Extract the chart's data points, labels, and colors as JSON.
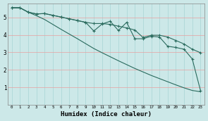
{
  "xlabel": "Humidex (Indice chaleur)",
  "bg_color": "#cce8e8",
  "grid_color_h": "#e8a0a0",
  "grid_color_v": "#a8d4d4",
  "line_color": "#2a6b5e",
  "x_values": [
    0,
    1,
    2,
    3,
    4,
    5,
    6,
    7,
    8,
    9,
    10,
    11,
    12,
    13,
    14,
    15,
    16,
    17,
    18,
    19,
    20,
    21,
    22,
    23
  ],
  "line1_y": [
    5.55,
    5.55,
    5.3,
    5.2,
    5.22,
    5.12,
    5.02,
    4.92,
    4.82,
    4.72,
    4.65,
    4.65,
    4.6,
    4.5,
    4.4,
    4.28,
    3.85,
    3.98,
    3.98,
    3.88,
    3.68,
    3.48,
    3.18,
    2.98
  ],
  "line2_y": [
    5.55,
    5.55,
    5.3,
    5.2,
    5.22,
    5.12,
    5.02,
    4.92,
    4.82,
    4.72,
    4.22,
    4.62,
    4.78,
    4.25,
    4.72,
    3.78,
    3.78,
    3.92,
    3.88,
    3.35,
    3.28,
    3.18,
    2.62,
    0.82
  ],
  "line3_y": [
    5.55,
    5.55,
    5.3,
    5.1,
    4.88,
    4.6,
    4.32,
    4.05,
    3.78,
    3.5,
    3.22,
    2.98,
    2.75,
    2.52,
    2.3,
    2.08,
    1.88,
    1.68,
    1.5,
    1.32,
    1.14,
    0.97,
    0.82,
    0.75
  ],
  "ylim": [
    0.0,
    5.8
  ],
  "yticks": [
    1,
    2,
    3,
    4,
    5
  ],
  "markersize": 3.5,
  "linewidth": 0.8
}
